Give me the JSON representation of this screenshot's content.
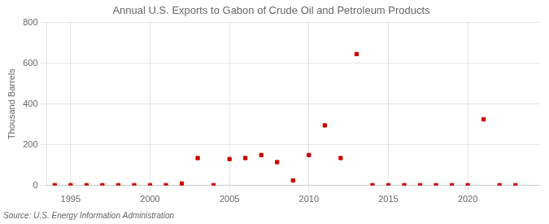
{
  "chart_data": {
    "type": "scatter",
    "title": "Annual U.S. Exports to Gabon of Crude Oil and Petroleum Products",
    "ylabel": "Thousand Barrels",
    "annotation": "Source: U.S. Energy Information Administration",
    "x": [
      1994,
      1995,
      1996,
      1997,
      1998,
      1999,
      2000,
      2001,
      2002,
      2003,
      2004,
      2005,
      2006,
      2007,
      2008,
      2009,
      2010,
      2011,
      2012,
      2013,
      2014,
      2015,
      2016,
      2017,
      2018,
      2019,
      2020,
      2021,
      2022,
      2023
    ],
    "values": [
      2,
      2,
      2,
      2,
      2,
      2,
      2,
      2,
      10,
      135,
      2,
      130,
      135,
      150,
      115,
      25,
      150,
      295,
      135,
      645,
      2,
      2,
      2,
      2,
      2,
      2,
      2,
      325,
      2,
      2
    ],
    "color": "#cc0000",
    "marker": "square",
    "xlim": [
      1993.5,
      2024.5
    ],
    "xticks": [
      1995,
      2000,
      2005,
      2010,
      2015,
      2020
    ],
    "ylim": [
      0,
      800
    ],
    "yticks": [
      0,
      200,
      400,
      600,
      800
    ],
    "grid": true
  }
}
